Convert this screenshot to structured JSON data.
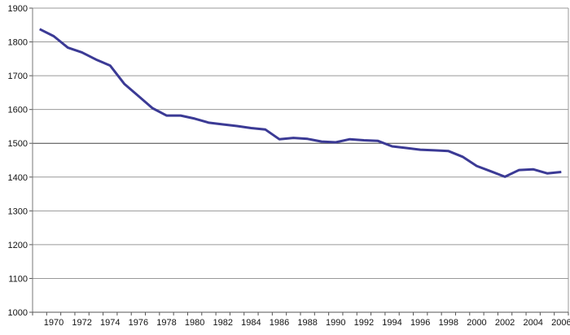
{
  "chart_data": {
    "type": "line",
    "title": "",
    "xlabel": "",
    "ylabel": "",
    "ylim": [
      1000,
      1900
    ],
    "yticks": [
      1000,
      1100,
      1200,
      1300,
      1400,
      1500,
      1600,
      1700,
      1800,
      1900
    ],
    "xtick_labels": [
      "1970",
      "1972",
      "1974",
      "1976",
      "1978",
      "1980",
      "1982",
      "1984",
      "1986",
      "1988",
      "1990",
      "1992",
      "1994",
      "1996",
      "1998",
      "2000",
      "2002",
      "2004",
      "2006"
    ],
    "grid": "horizontal",
    "line_color": "#3b3a95",
    "x": [
      1969,
      1970,
      1971,
      1972,
      1973,
      1974,
      1975,
      1976,
      1977,
      1978,
      1979,
      1980,
      1981,
      1982,
      1983,
      1984,
      1985,
      1986,
      1987,
      1988,
      1989,
      1990,
      1991,
      1992,
      1993,
      1994,
      1995,
      1996,
      1997,
      1998,
      1999,
      2000,
      2001,
      2002,
      2003,
      2004,
      2005,
      2006
    ],
    "values": [
      1838,
      1817,
      1783,
      1769,
      1748,
      1730,
      1676,
      1640,
      1604,
      1582,
      1582,
      1573,
      1561,
      1556,
      1551,
      1545,
      1541,
      1512,
      1516,
      1513,
      1505,
      1503,
      1512,
      1509,
      1507,
      1491,
      1486,
      1481,
      1479,
      1477,
      1460,
      1433,
      1417,
      1401,
      1421,
      1423,
      1411,
      1415
    ]
  }
}
